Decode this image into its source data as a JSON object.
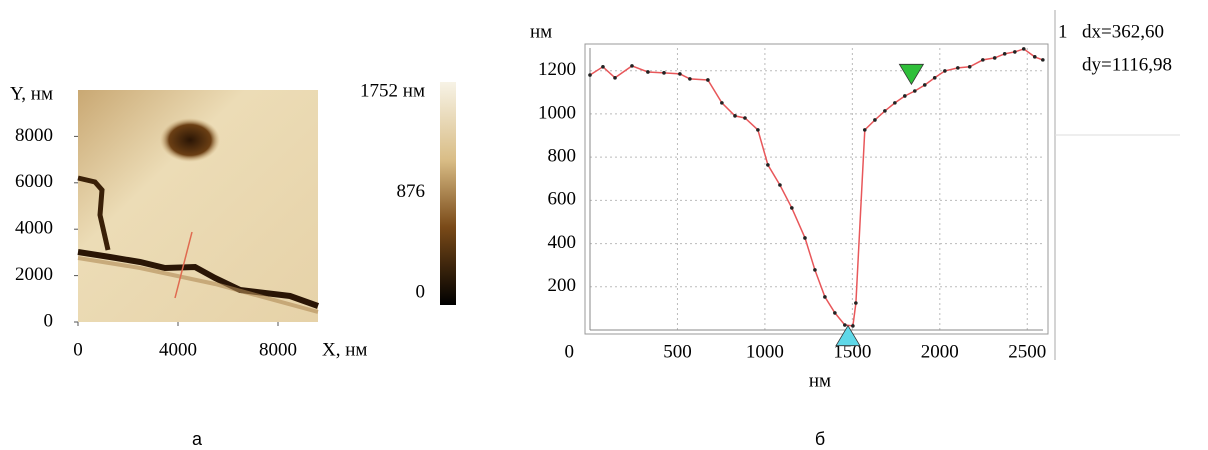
{
  "chart_data": [
    {
      "type": "image",
      "caption": "а",
      "xlabel": "X, нм",
      "ylabel": "Y, нм",
      "xlim": [
        0,
        9600
      ],
      "ylim": [
        0,
        10000
      ],
      "xticks": [
        0,
        4000,
        8000
      ],
      "yticks": [
        0,
        2000,
        4000,
        6000,
        8000
      ],
      "zlim": [
        0,
        1752
      ],
      "zticks": [
        0,
        876,
        {
          "value": 1752,
          "label": "1752 нм"
        }
      ]
    },
    {
      "type": "line",
      "caption": "б",
      "xlabel": "нм",
      "ylabel": "нм",
      "color": "#e8575a",
      "grid": true,
      "xlim": [
        0,
        2590
      ],
      "ylim": [
        0,
        1305
      ],
      "xticks": [
        0,
        500,
        1000,
        1500,
        2000,
        2500
      ],
      "yticks": [
        200,
        400,
        600,
        800,
        1000,
        1200
      ],
      "x": [
        0,
        74,
        143,
        240,
        331,
        423,
        514,
        571,
        674,
        754,
        829,
        886,
        960,
        1017,
        1086,
        1154,
        1229,
        1286,
        1343,
        1400,
        1457,
        1503,
        1520,
        1571,
        1629,
        1686,
        1743,
        1800,
        1857,
        1914,
        1971,
        2029,
        2103,
        2171,
        2246,
        2314,
        2371,
        2429,
        2480,
        2543,
        2589
      ],
      "y": [
        1180,
        1218,
        1167,
        1222,
        1194,
        1190,
        1185,
        1162,
        1157,
        1051,
        991,
        981,
        926,
        764,
        671,
        565,
        426,
        278,
        153,
        79,
        23,
        19,
        125,
        926,
        972,
        1014,
        1051,
        1083,
        1106,
        1134,
        1167,
        1199,
        1213,
        1218,
        1250,
        1259,
        1278,
        1287,
        1301,
        1264,
        1250
      ],
      "cursors": [
        {
          "x": 1475,
          "y": 20
        },
        {
          "x": 1837.6,
          "y": 1136.98
        }
      ],
      "readout": {
        "index": "1",
        "dx": "dx=362,60",
        "dy": "dy=1116,98"
      }
    }
  ]
}
